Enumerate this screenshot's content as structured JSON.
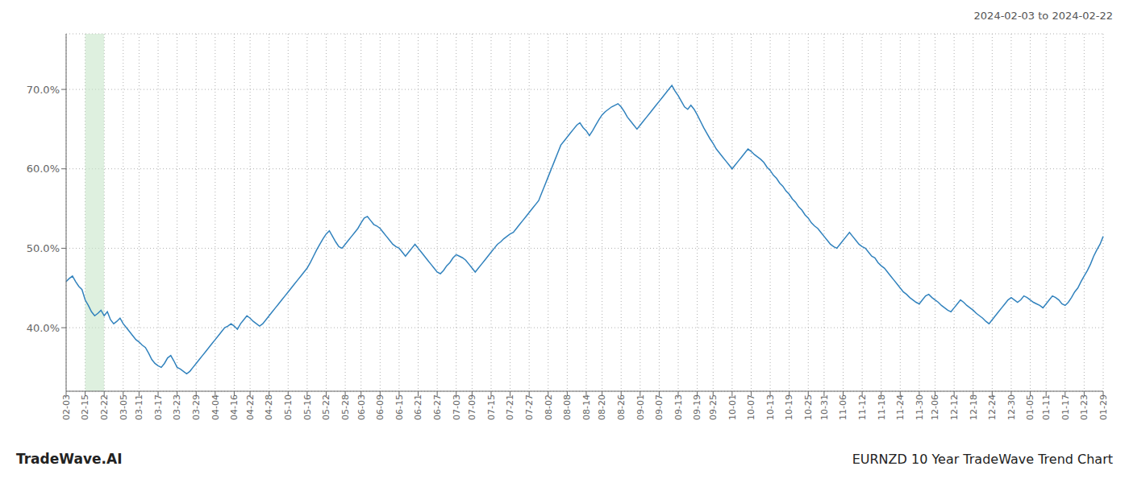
{
  "chart_data": {
    "type": "line",
    "title": "2024-02-03 to 2024-02-22",
    "annotations": [
      "TradeWave.AI",
      "EURNZD 10 Year TradeWave Trend Chart"
    ],
    "grid": true,
    "ylim": [
      32.0,
      77.0
    ],
    "yticks": [
      {
        "value": 40.0,
        "label": "40.0%"
      },
      {
        "value": 50.0,
        "label": "50.0%"
      },
      {
        "value": 60.0,
        "label": "60.0%"
      },
      {
        "value": 70.0,
        "label": "70.0%"
      }
    ],
    "highlight": {
      "start": "02-15",
      "end": "02-22",
      "color": "#c8e6c9"
    },
    "categories": [
      "02-03",
      null,
      null,
      null,
      null,
      null,
      "02-15",
      null,
      null,
      null,
      null,
      null,
      "02-22",
      null,
      null,
      null,
      null,
      null,
      "03-05",
      null,
      null,
      null,
      null,
      "03-11",
      null,
      null,
      null,
      null,
      null,
      "03-17",
      null,
      null,
      null,
      null,
      null,
      "03-23",
      null,
      null,
      null,
      null,
      null,
      "03-29",
      null,
      null,
      null,
      null,
      null,
      "04-04",
      null,
      null,
      null,
      null,
      null,
      "04-16",
      null,
      null,
      null,
      null,
      "04-22",
      null,
      null,
      null,
      null,
      null,
      "04-28",
      null,
      null,
      null,
      null,
      null,
      "05-10",
      null,
      null,
      null,
      null,
      null,
      "05-16",
      null,
      null,
      null,
      null,
      null,
      "05-22",
      null,
      null,
      null,
      null,
      null,
      "05-28",
      null,
      null,
      null,
      null,
      "06-03",
      null,
      null,
      null,
      null,
      null,
      "06-09",
      null,
      null,
      null,
      null,
      null,
      "06-15",
      null,
      null,
      null,
      null,
      null,
      "06-21",
      null,
      null,
      null,
      null,
      null,
      "06-27",
      null,
      null,
      null,
      null,
      null,
      "07-03",
      null,
      null,
      null,
      null,
      "07-09",
      null,
      null,
      null,
      null,
      null,
      "07-15",
      null,
      null,
      null,
      null,
      null,
      "07-21",
      null,
      null,
      null,
      null,
      null,
      "07-27",
      null,
      null,
      null,
      null,
      null,
      "08-02",
      null,
      null,
      null,
      null,
      null,
      "08-08",
      null,
      null,
      null,
      null,
      null,
      "08-14",
      null,
      null,
      null,
      null,
      "08-20",
      null,
      null,
      null,
      null,
      null,
      "08-26",
      null,
      null,
      null,
      null,
      null,
      "09-01",
      null,
      null,
      null,
      null,
      null,
      "09-07",
      null,
      null,
      null,
      null,
      null,
      "09-13",
      null,
      null,
      null,
      null,
      null,
      "09-19",
      null,
      null,
      null,
      null,
      "09-25",
      null,
      null,
      null,
      null,
      null,
      "10-01",
      null,
      null,
      null,
      null,
      null,
      "10-07",
      null,
      null,
      null,
      null,
      null,
      "10-13",
      null,
      null,
      null,
      null,
      null,
      "10-19",
      null,
      null,
      null,
      null,
      null,
      "10-25",
      null,
      null,
      null,
      null,
      "10-31",
      null,
      null,
      null,
      null,
      null,
      "11-06",
      null,
      null,
      null,
      null,
      null,
      "11-12",
      null,
      null,
      null,
      null,
      null,
      "11-18",
      null,
      null,
      null,
      null,
      null,
      "11-24",
      null,
      null,
      null,
      null,
      null,
      "11-30",
      null,
      null,
      null,
      null,
      "12-06",
      null,
      null,
      null,
      null,
      null,
      "12-12",
      null,
      null,
      null,
      null,
      null,
      "12-18",
      null,
      null,
      null,
      null,
      null,
      "12-24",
      null,
      null,
      null,
      null,
      null,
      "12-30",
      null,
      null,
      null,
      null,
      null,
      "01-05",
      null,
      null,
      null,
      null,
      "01-11",
      null,
      null,
      null,
      null,
      null,
      "01-17",
      null,
      null,
      null,
      null,
      null,
      "01-23",
      null,
      null,
      null,
      null,
      null,
      "01-29"
    ],
    "values": [
      45.8,
      46.2,
      46.5,
      45.8,
      45.2,
      44.8,
      43.5,
      42.8,
      42.0,
      41.5,
      41.8,
      42.2,
      41.5,
      42.0,
      41.0,
      40.5,
      40.8,
      41.2,
      40.5,
      40.0,
      39.5,
      39.0,
      38.5,
      38.2,
      37.8,
      37.5,
      36.8,
      36.0,
      35.5,
      35.2,
      35.0,
      35.5,
      36.2,
      36.5,
      35.8,
      35.0,
      34.8,
      34.5,
      34.2,
      34.5,
      35.0,
      35.5,
      36.0,
      36.5,
      37.0,
      37.5,
      38.0,
      38.5,
      39.0,
      39.5,
      40.0,
      40.2,
      40.5,
      40.2,
      39.8,
      40.5,
      41.0,
      41.5,
      41.2,
      40.8,
      40.5,
      40.2,
      40.5,
      41.0,
      41.5,
      42.0,
      42.5,
      43.0,
      43.5,
      44.0,
      44.5,
      45.0,
      45.5,
      46.0,
      46.5,
      47.0,
      47.5,
      48.2,
      49.0,
      49.8,
      50.5,
      51.2,
      51.8,
      52.2,
      51.5,
      50.8,
      50.2,
      50.0,
      50.5,
      51.0,
      51.5,
      52.0,
      52.5,
      53.2,
      53.8,
      54.0,
      53.5,
      53.0,
      52.8,
      52.5,
      52.0,
      51.5,
      51.0,
      50.5,
      50.2,
      50.0,
      49.5,
      49.0,
      49.5,
      50.0,
      50.5,
      50.0,
      49.5,
      49.0,
      48.5,
      48.0,
      47.5,
      47.0,
      46.8,
      47.2,
      47.8,
      48.2,
      48.8,
      49.2,
      49.0,
      48.8,
      48.5,
      48.0,
      47.5,
      47.0,
      47.5,
      48.0,
      48.5,
      49.0,
      49.5,
      50.0,
      50.5,
      50.8,
      51.2,
      51.5,
      51.8,
      52.0,
      52.5,
      53.0,
      53.5,
      54.0,
      54.5,
      55.0,
      55.5,
      56.0,
      57.0,
      58.0,
      59.0,
      60.0,
      61.0,
      62.0,
      63.0,
      63.5,
      64.0,
      64.5,
      65.0,
      65.5,
      65.8,
      65.2,
      64.8,
      64.2,
      64.8,
      65.5,
      66.2,
      66.8,
      67.2,
      67.5,
      67.8,
      68.0,
      68.2,
      67.8,
      67.2,
      66.5,
      66.0,
      65.5,
      65.0,
      65.5,
      66.0,
      66.5,
      67.0,
      67.5,
      68.0,
      68.5,
      69.0,
      69.5,
      70.0,
      70.5,
      69.8,
      69.2,
      68.5,
      67.8,
      67.5,
      68.0,
      67.5,
      66.8,
      66.0,
      65.2,
      64.5,
      63.8,
      63.2,
      62.5,
      62.0,
      61.5,
      61.0,
      60.5,
      60.0,
      60.5,
      61.0,
      61.5,
      62.0,
      62.5,
      62.2,
      61.8,
      61.5,
      61.2,
      60.8,
      60.2,
      59.8,
      59.2,
      58.8,
      58.2,
      57.8,
      57.2,
      56.8,
      56.2,
      55.8,
      55.2,
      54.8,
      54.2,
      53.8,
      53.2,
      52.8,
      52.5,
      52.0,
      51.5,
      51.0,
      50.5,
      50.2,
      50.0,
      50.5,
      51.0,
      51.5,
      52.0,
      51.5,
      51.0,
      50.5,
      50.2,
      50.0,
      49.5,
      49.0,
      48.8,
      48.2,
      47.8,
      47.5,
      47.0,
      46.5,
      46.0,
      45.5,
      45.0,
      44.5,
      44.2,
      43.8,
      43.5,
      43.2,
      43.0,
      43.5,
      44.0,
      44.2,
      43.8,
      43.5,
      43.2,
      42.8,
      42.5,
      42.2,
      42.0,
      42.5,
      43.0,
      43.5,
      43.2,
      42.8,
      42.5,
      42.2,
      41.8,
      41.5,
      41.2,
      40.8,
      40.5,
      41.0,
      41.5,
      42.0,
      42.5,
      43.0,
      43.5,
      43.8,
      43.5,
      43.2,
      43.5,
      44.0,
      43.8,
      43.5,
      43.2,
      43.0,
      42.8,
      42.5,
      43.0,
      43.5,
      44.0,
      43.8,
      43.5,
      43.0,
      42.8,
      43.2,
      43.8,
      44.5,
      45.0,
      45.8,
      46.5,
      47.2,
      48.0,
      49.0,
      49.8,
      50.5,
      51.5
    ]
  }
}
